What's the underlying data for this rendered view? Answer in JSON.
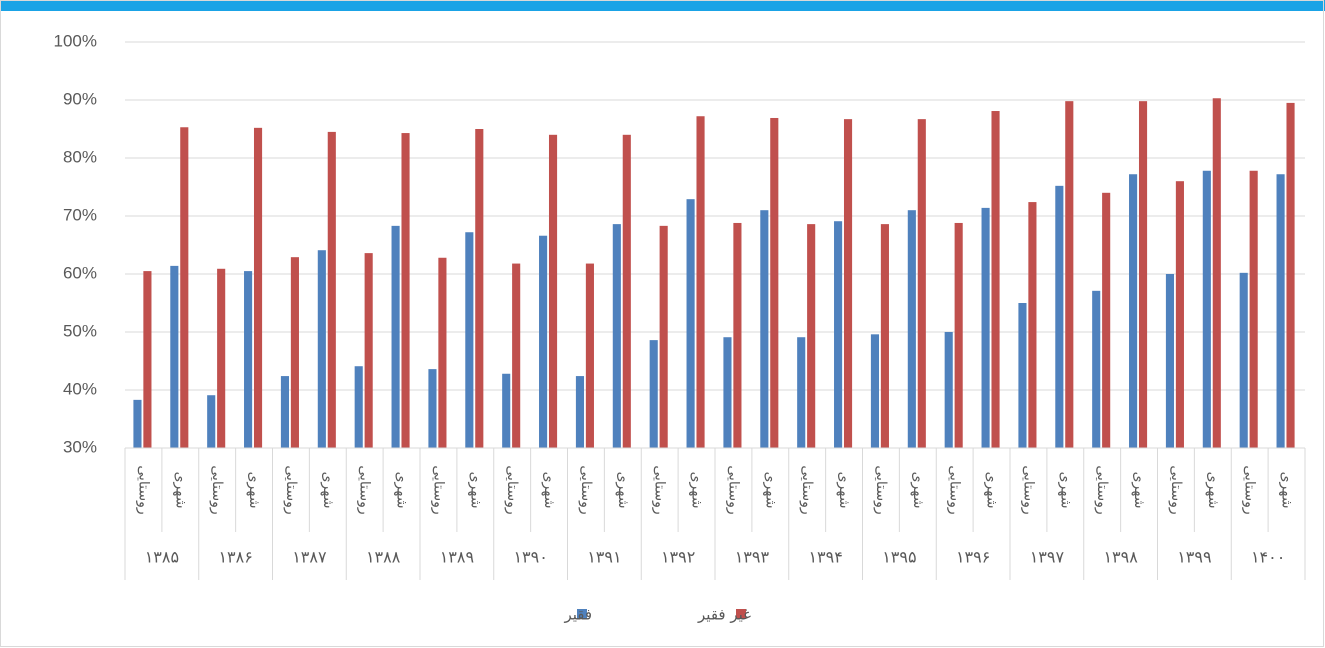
{
  "chart_data": {
    "type": "bar",
    "categories": [
      "روستایی",
      "شهری",
      "روستایی",
      "شهری",
      "روستایی",
      "شهری",
      "روستایی",
      "شهری",
      "روستایی",
      "شهری",
      "روستایی",
      "شهری",
      "روستایی",
      "شهری",
      "روستایی",
      "شهری",
      "روستایی",
      "شهری",
      "روستایی",
      "شهری",
      "روستایی",
      "شهری",
      "روستایی",
      "شهری",
      "روستایی",
      "شهری",
      "روستایی",
      "شهری",
      "روستایی",
      "شهری",
      "روستایی",
      "شهری"
    ],
    "category_groups": [
      "۱۳۸۵",
      "۱۳۸۶",
      "۱۳۸۷",
      "۱۳۸۸",
      "۱۳۸۹",
      "۱۳۹۰",
      "۱۳۹۱",
      "۱۳۹۲",
      "۱۳۹۳",
      "۱۳۹۴",
      "۱۳۹۵",
      "۱۳۹۶",
      "۱۳۹۷",
      "۱۳۹۸",
      "۱۳۹۹",
      "۱۴۰۰"
    ],
    "series": [
      {
        "name": "فقیر",
        "color": "#4f81bd",
        "values": [
          38.3,
          61.4,
          39.1,
          60.5,
          42.4,
          64.1,
          44.1,
          68.3,
          43.6,
          67.2,
          42.8,
          66.6,
          42.4,
          68.6,
          48.6,
          72.9,
          49.1,
          71.0,
          49.1,
          69.1,
          49.6,
          71.0,
          50.0,
          71.4,
          55.0,
          75.2,
          57.1,
          77.2,
          60.0,
          77.8,
          60.2,
          77.2
        ]
      },
      {
        "name": "غیر فقیر",
        "color": "#c0504d",
        "values": [
          60.5,
          85.3,
          60.9,
          85.2,
          62.9,
          84.5,
          63.6,
          84.3,
          62.8,
          85.0,
          61.8,
          84.0,
          61.8,
          84.0,
          68.3,
          87.2,
          68.8,
          86.9,
          68.6,
          86.7,
          68.6,
          86.7,
          68.8,
          88.1,
          72.4,
          89.8,
          74.0,
          89.8,
          76.0,
          90.3,
          77.8,
          89.5
        ]
      }
    ],
    "ylim": [
      30,
      100
    ],
    "yticks": [
      {
        "value": 30,
        "label": "30%"
      },
      {
        "value": 40,
        "label": "40%"
      },
      {
        "value": 50,
        "label": "50%"
      },
      {
        "value": 60,
        "label": "60%"
      },
      {
        "value": 70,
        "label": "70%"
      },
      {
        "value": 80,
        "label": "80%"
      },
      {
        "value": 90,
        "label": "90%"
      },
      {
        "value": 100,
        "label": "100%"
      }
    ],
    "grid": true,
    "legend": "bottom"
  }
}
